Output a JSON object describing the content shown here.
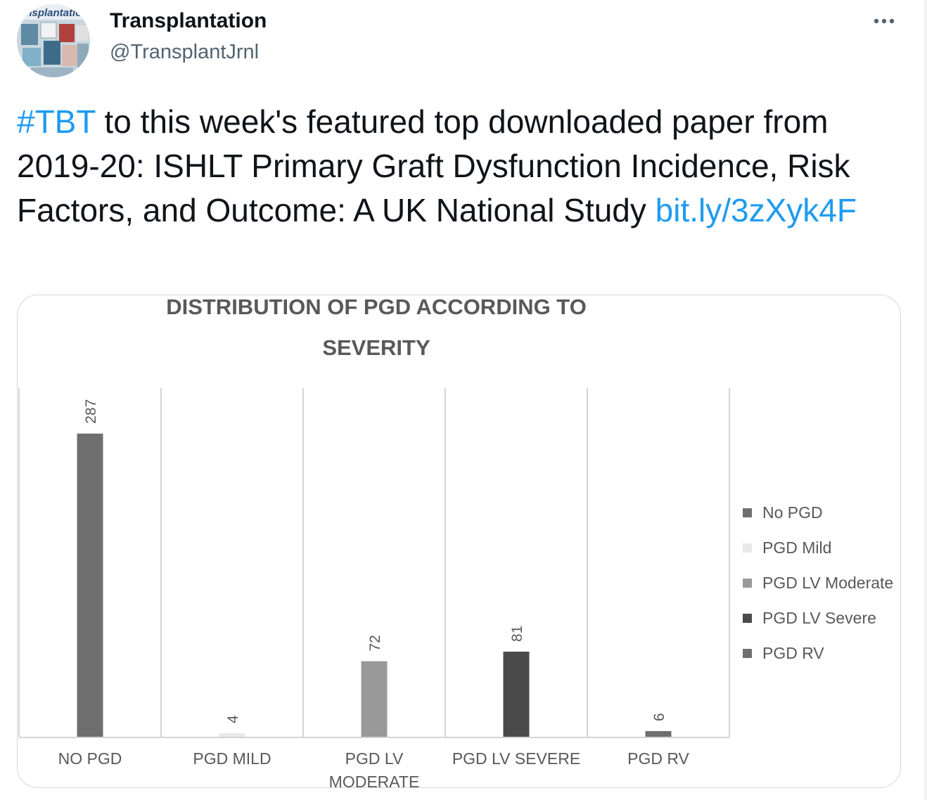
{
  "tweet": {
    "author_name": "Transplantation",
    "author_handle": "@TransplantJrnl",
    "avatar_text": "ansplantatio",
    "more_icon": "more-horizontal-icon",
    "text_parts": [
      {
        "text": "#TBT",
        "link": true
      },
      {
        "text": " to this week's featured top downloaded paper from 2019-20: ISHLT Primary Graft Dysfunction Incidence, Risk Factors, and Outcome: A UK National Study ",
        "link": false
      },
      {
        "text": "bit.ly/3zXyk4F",
        "link": true
      }
    ],
    "link_color": "#1d9bf0"
  },
  "chart_data": {
    "type": "bar",
    "title_lines": [
      "DISTRIBUTION OF PGD ACCORDING TO",
      "SEVERITY"
    ],
    "categories": [
      [
        "NO PGD"
      ],
      [
        "PGD MILD"
      ],
      [
        "PGD LV",
        "MODERATE"
      ],
      [
        "PGD LV SEVERE"
      ],
      [
        "PGD RV"
      ]
    ],
    "values": [
      287,
      4,
      72,
      81,
      6
    ],
    "colors": [
      "#6e6e6e",
      "#e8e8e8",
      "#999999",
      "#4a4a4a",
      "#6e6e6e"
    ],
    "legend": [
      "No PGD",
      "PGD Mild",
      "PGD LV Moderate",
      "PGD LV Severe",
      "PGD RV"
    ],
    "legend_position": "right",
    "ylim": [
      0,
      330
    ],
    "xlabel": "",
    "ylabel": ""
  }
}
